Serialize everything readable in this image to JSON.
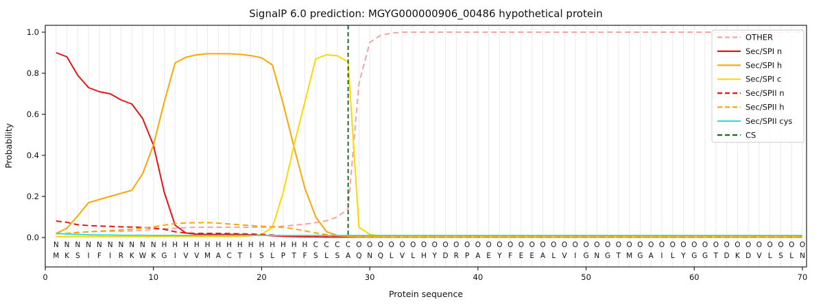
{
  "title": "SignalP 6.0 prediction: MGYG000000906_00486 hypothetical protein",
  "axes": {
    "xlabel": "Protein sequence",
    "ylabel": "Probability",
    "x_ticks": [
      0,
      10,
      20,
      30,
      40,
      50,
      60,
      70
    ],
    "y_ticks": [
      "0.0",
      "0.2",
      "0.4",
      "0.6",
      "0.8",
      "1.0"
    ]
  },
  "chart_data": {
    "type": "line",
    "title": "SignalP 6.0 prediction: MGYG000000906_00486 hypothetical protein",
    "xlabel": "Protein sequence",
    "ylabel": "Probability",
    "xlim": [
      0,
      70.4
    ],
    "ylim": [
      0,
      1.03
    ],
    "x_start": 1,
    "grid": "vertical-per-residue",
    "legend_position": "upper right",
    "sequence": "MKSIFIRKWKGIVVMACTISLPTFSLSAQNQLVLHYDRPAEYFEEALVIGNGTMGAILYGGTDKDVLSLN",
    "region_labels": "NNNNNNNNNNHHHHHHHHHHHHHHCCCCOOOOOOOOOOOOOOOOOOOOOOOOOOOOOOOOOOOOOOOOOO",
    "region_colors": {
      "N": "#ee1111",
      "H": "#ffa500",
      "C": "#edc90e",
      "O": "#9a9a9a"
    },
    "style": {
      "grid_color": "#e9e9e9",
      "frame_color": "#202020",
      "cs_color": "#006400"
    },
    "series": [
      {
        "name": "OTHER",
        "color": "#f4a2a2",
        "dash": "dashed",
        "values": [
          0.02,
          0.02,
          0.025,
          0.028,
          0.03,
          0.03,
          0.03,
          0.032,
          0.035,
          0.04,
          0.042,
          0.045,
          0.048,
          0.05,
          0.05,
          0.05,
          0.05,
          0.05,
          0.05,
          0.05,
          0.052,
          0.055,
          0.06,
          0.065,
          0.072,
          0.082,
          0.1,
          0.14,
          0.75,
          0.95,
          0.985,
          0.995,
          1.0,
          1.0,
          1.0,
          1.0,
          1.0,
          1.0,
          1.0,
          1.0,
          1.0,
          1.0,
          1.0,
          1.0,
          1.0,
          1.0,
          1.0,
          1.0,
          1.0,
          1.0,
          1.0,
          1.0,
          1.0,
          1.0,
          1.0,
          1.0,
          1.0,
          1.0,
          1.0,
          1.0,
          1.0,
          1.0,
          1.0,
          1.0,
          1.0,
          1.0,
          1.0,
          1.0,
          1.0,
          1.0
        ]
      },
      {
        "name": "Sec/SPI n",
        "color": "#ee1111",
        "dash": "solid",
        "values": [
          0.9,
          0.88,
          0.79,
          0.73,
          0.71,
          0.7,
          0.67,
          0.65,
          0.58,
          0.45,
          0.22,
          0.06,
          0.022,
          0.016,
          0.015,
          0.015,
          0.015,
          0.014,
          0.013,
          0.012,
          0.008,
          0.006,
          0.004,
          0.003,
          0.003,
          0.002,
          0.002,
          0.002,
          0.002,
          0.002,
          0.002,
          0.002,
          0.002,
          0.002,
          0.002,
          0.002,
          0.002,
          0.002,
          0.002,
          0.002,
          0.002,
          0.002,
          0.002,
          0.002,
          0.002,
          0.002,
          0.002,
          0.002,
          0.002,
          0.002,
          0.002,
          0.002,
          0.002,
          0.002,
          0.002,
          0.002,
          0.002,
          0.002,
          0.002,
          0.002,
          0.002,
          0.002,
          0.002,
          0.002,
          0.002,
          0.002,
          0.002,
          0.002,
          0.002,
          0.002
        ]
      },
      {
        "name": "Sec/SPI h",
        "color": "#ffa500",
        "dash": "solid",
        "values": [
          0.02,
          0.045,
          0.105,
          0.17,
          0.185,
          0.2,
          0.215,
          0.23,
          0.31,
          0.45,
          0.66,
          0.85,
          0.878,
          0.89,
          0.895,
          0.895,
          0.895,
          0.892,
          0.886,
          0.875,
          0.84,
          0.65,
          0.44,
          0.24,
          0.1,
          0.028,
          0.01,
          0.005,
          0.003,
          0.003,
          0.003,
          0.003,
          0.003,
          0.003,
          0.003,
          0.003,
          0.003,
          0.003,
          0.003,
          0.003,
          0.003,
          0.003,
          0.003,
          0.003,
          0.003,
          0.003,
          0.003,
          0.003,
          0.003,
          0.003,
          0.003,
          0.003,
          0.003,
          0.003,
          0.003,
          0.003,
          0.003,
          0.003,
          0.003,
          0.003,
          0.003,
          0.003,
          0.003,
          0.003,
          0.003,
          0.003,
          0.003,
          0.003,
          0.003,
          0.003
        ]
      },
      {
        "name": "Sec/SPI c",
        "color": "#ffd700",
        "dash": "solid",
        "values": [
          0.004,
          0.004,
          0.004,
          0.004,
          0.004,
          0.004,
          0.004,
          0.004,
          0.004,
          0.004,
          0.004,
          0.004,
          0.004,
          0.004,
          0.004,
          0.004,
          0.004,
          0.005,
          0.008,
          0.015,
          0.05,
          0.22,
          0.45,
          0.66,
          0.87,
          0.89,
          0.885,
          0.855,
          0.05,
          0.015,
          0.008,
          0.005,
          0.004,
          0.004,
          0.004,
          0.004,
          0.004,
          0.004,
          0.004,
          0.004,
          0.004,
          0.004,
          0.004,
          0.004,
          0.004,
          0.004,
          0.004,
          0.004,
          0.004,
          0.004,
          0.004,
          0.004,
          0.004,
          0.004,
          0.004,
          0.004,
          0.004,
          0.004,
          0.004,
          0.004,
          0.004,
          0.004,
          0.004,
          0.004,
          0.004,
          0.004,
          0.004,
          0.004,
          0.004,
          0.004
        ]
      },
      {
        "name": "Sec/SPII n",
        "color": "#ee1111",
        "dash": "dashed",
        "values": [
          0.08,
          0.074,
          0.062,
          0.058,
          0.056,
          0.054,
          0.052,
          0.051,
          0.049,
          0.046,
          0.04,
          0.028,
          0.022,
          0.02,
          0.02,
          0.02,
          0.019,
          0.018,
          0.017,
          0.015,
          0.012,
          0.009,
          0.007,
          0.005,
          0.004,
          0.003,
          0.003,
          0.002,
          0.002,
          0.002,
          0.002,
          0.002,
          0.002,
          0.002,
          0.002,
          0.002,
          0.002,
          0.002,
          0.002,
          0.002,
          0.002,
          0.002,
          0.002,
          0.002,
          0.002,
          0.002,
          0.002,
          0.002,
          0.002,
          0.002,
          0.002,
          0.002,
          0.002,
          0.002,
          0.002,
          0.002,
          0.002,
          0.002,
          0.002,
          0.002,
          0.002,
          0.002,
          0.002,
          0.002,
          0.002,
          0.002,
          0.002,
          0.002,
          0.002,
          0.002
        ]
      },
      {
        "name": "Sec/SPII h",
        "color": "#ffa500",
        "dash": "dashed",
        "values": [
          0.018,
          0.02,
          0.024,
          0.028,
          0.031,
          0.034,
          0.037,
          0.04,
          0.046,
          0.052,
          0.06,
          0.068,
          0.071,
          0.072,
          0.072,
          0.07,
          0.066,
          0.062,
          0.058,
          0.055,
          0.052,
          0.049,
          0.042,
          0.032,
          0.022,
          0.014,
          0.009,
          0.005,
          0.003,
          0.003,
          0.003,
          0.003,
          0.003,
          0.003,
          0.003,
          0.003,
          0.003,
          0.003,
          0.003,
          0.003,
          0.003,
          0.003,
          0.003,
          0.003,
          0.003,
          0.003,
          0.003,
          0.003,
          0.003,
          0.003,
          0.003,
          0.003,
          0.003,
          0.003,
          0.003,
          0.003,
          0.003,
          0.003,
          0.003,
          0.003,
          0.003,
          0.003,
          0.003,
          0.003,
          0.003,
          0.003,
          0.003,
          0.003,
          0.003,
          0.003
        ]
      },
      {
        "name": "Sec/SPII cys",
        "color": "#2fdfdf",
        "dash": "solid",
        "values": [
          0.02,
          0.017,
          0.015,
          0.013,
          0.012,
          0.012,
          0.011,
          0.011,
          0.011,
          0.01,
          0.01,
          0.01,
          0.01,
          0.01,
          0.01,
          0.01,
          0.01,
          0.01,
          0.01,
          0.01,
          0.01,
          0.01,
          0.01,
          0.01,
          0.01,
          0.01,
          0.01,
          0.01,
          0.01,
          0.01,
          0.01,
          0.01,
          0.01,
          0.01,
          0.01,
          0.01,
          0.01,
          0.01,
          0.01,
          0.01,
          0.01,
          0.01,
          0.01,
          0.01,
          0.01,
          0.01,
          0.01,
          0.01,
          0.01,
          0.01,
          0.01,
          0.01,
          0.01,
          0.01,
          0.01,
          0.01,
          0.01,
          0.01,
          0.01,
          0.01,
          0.01,
          0.01,
          0.01,
          0.01,
          0.01,
          0.01,
          0.01,
          0.01,
          0.01,
          0.01
        ]
      },
      {
        "name": "CS",
        "color": "#006400",
        "dash": "dashed",
        "type": "vline",
        "x": 28
      }
    ]
  }
}
